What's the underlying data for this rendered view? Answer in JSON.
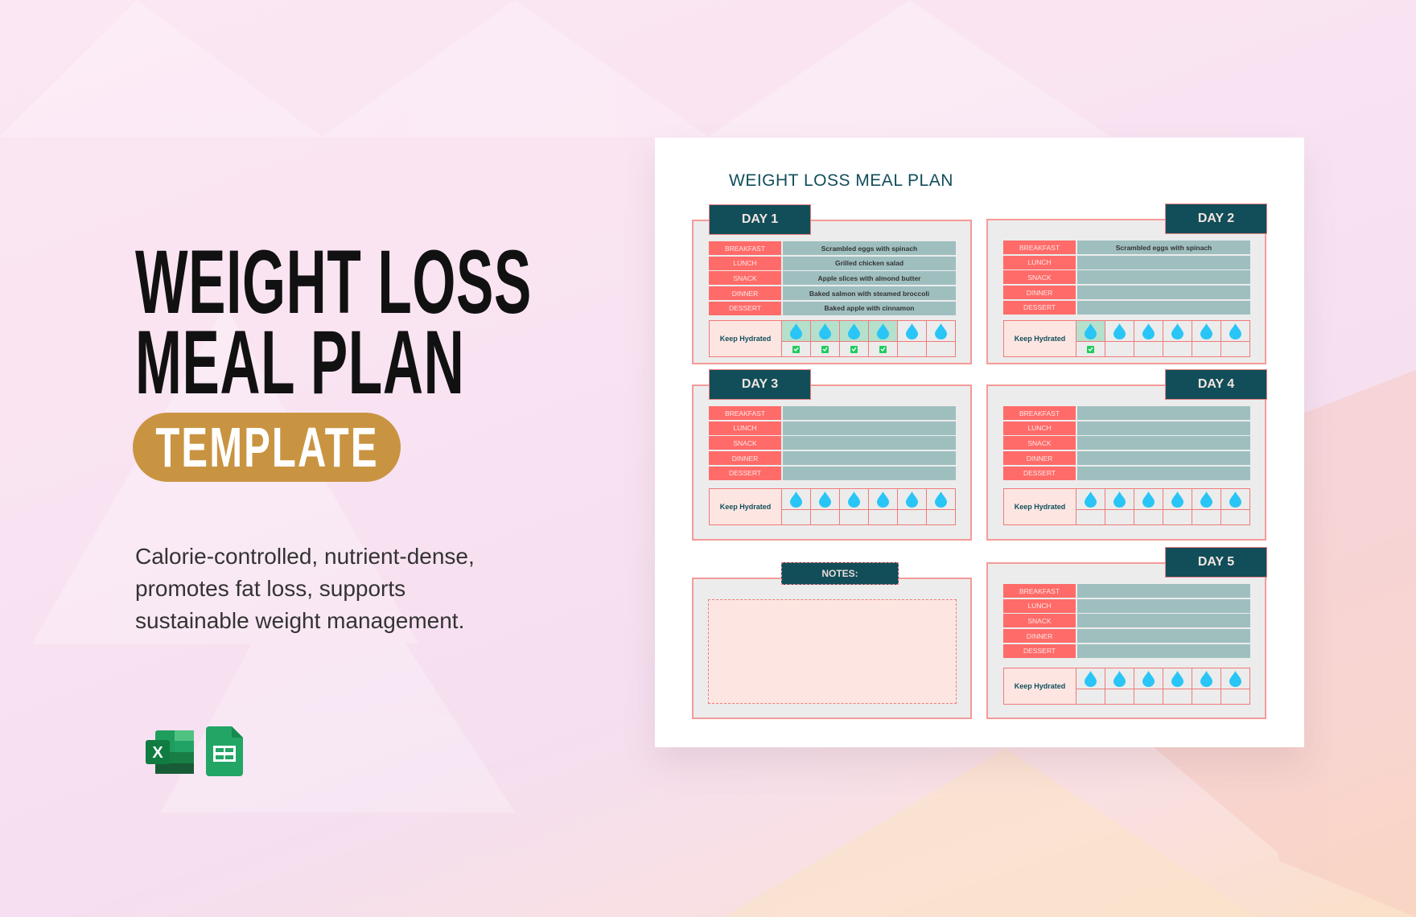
{
  "hero": {
    "title_line1": "WEIGHT LOSS",
    "title_line2": "MEAL PLAN",
    "badge": "TEMPLATE",
    "description": [
      "Calorie-controlled, nutrient-dense,",
      "promotes fat loss, supports",
      "sustainable weight management."
    ]
  },
  "app_icons": [
    {
      "name": "excel-icon",
      "letter": "X"
    },
    {
      "name": "google-sheets-icon"
    }
  ],
  "sheet": {
    "title": "WEIGHT LOSS MEAL PLAN",
    "hydration_label": "Keep Hydrated",
    "notes_label": "NOTES:",
    "days": [
      {
        "label": "DAY 1",
        "meals": [
          {
            "label": "BREAKFAST",
            "value": "Scrambled eggs with spinach"
          },
          {
            "label": "LUNCH",
            "value": "Grilled chicken salad"
          },
          {
            "label": "SNACK",
            "value": "Apple slices with almond butter"
          },
          {
            "label": "DINNER",
            "value": "Baked salmon with steamed broccoli"
          },
          {
            "label": "DESSERT",
            "value": "Baked apple with cinnamon"
          }
        ],
        "glasses": 6,
        "checked": 4
      },
      {
        "label": "DAY 2",
        "meals": [
          {
            "label": "BREAKFAST",
            "value": "Scrambled eggs with spinach"
          },
          {
            "label": "LUNCH",
            "value": ""
          },
          {
            "label": "SNACK",
            "value": ""
          },
          {
            "label": "DINNER",
            "value": ""
          },
          {
            "label": "DESSERT",
            "value": ""
          }
        ],
        "glasses": 6,
        "checked": 1
      },
      {
        "label": "DAY 3",
        "meals": [
          {
            "label": "BREAKFAST",
            "value": ""
          },
          {
            "label": "LUNCH",
            "value": ""
          },
          {
            "label": "SNACK",
            "value": ""
          },
          {
            "label": "DINNER",
            "value": ""
          },
          {
            "label": "DESSERT",
            "value": ""
          }
        ],
        "glasses": 6,
        "checked": 0
      },
      {
        "label": "DAY 4",
        "meals": [
          {
            "label": "BREAKFAST",
            "value": ""
          },
          {
            "label": "LUNCH",
            "value": ""
          },
          {
            "label": "SNACK",
            "value": ""
          },
          {
            "label": "DINNER",
            "value": ""
          },
          {
            "label": "DESSERT",
            "value": ""
          }
        ],
        "glasses": 6,
        "checked": 0
      },
      {
        "label": "DAY 5",
        "meals": [
          {
            "label": "BREAKFAST",
            "value": ""
          },
          {
            "label": "LUNCH",
            "value": ""
          },
          {
            "label": "SNACK",
            "value": ""
          },
          {
            "label": "DINNER",
            "value": ""
          },
          {
            "label": "DESSERT",
            "value": ""
          }
        ],
        "glasses": 6,
        "checked": 0
      }
    ]
  },
  "colors": {
    "tab": "#114e5a",
    "meal_label": "#ff6b69",
    "meal_value": "#9fbfbf",
    "water_drop": "#29c5f6",
    "check": "#1fcb5c",
    "badge": "#c99442"
  }
}
